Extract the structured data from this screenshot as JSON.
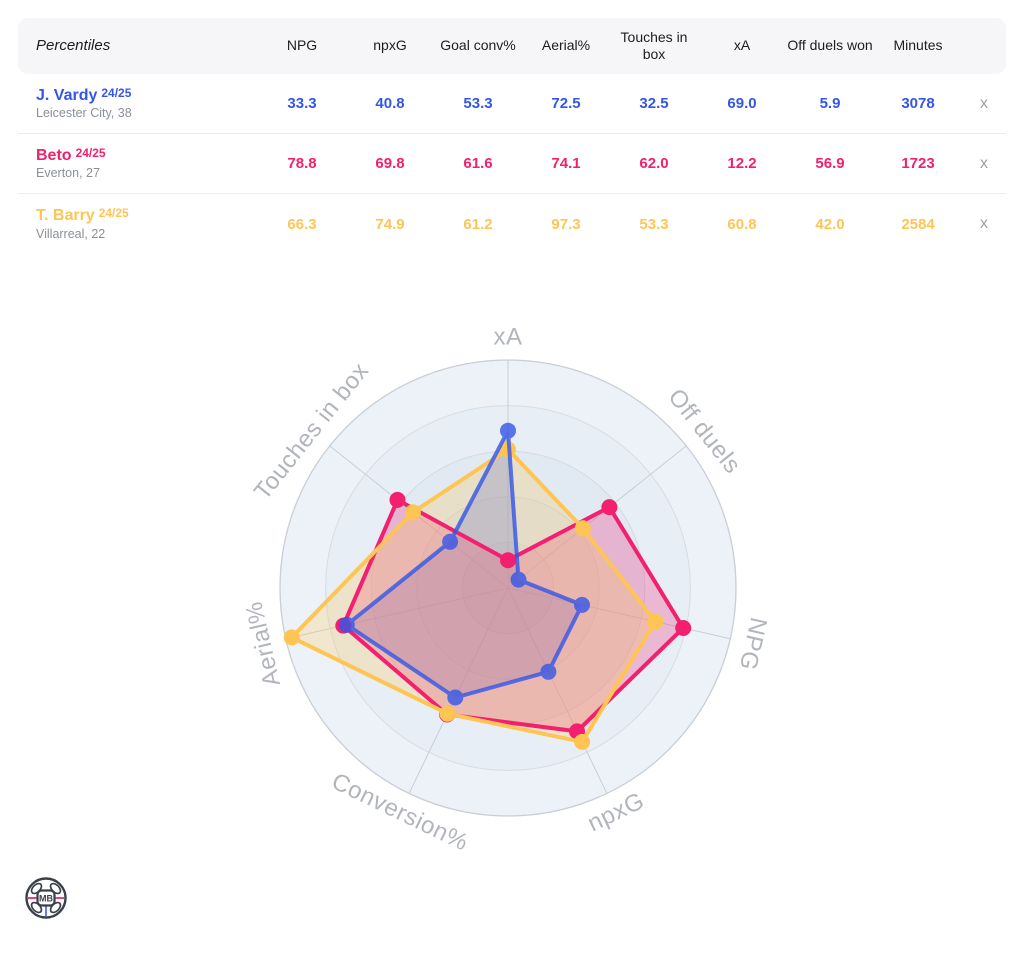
{
  "table": {
    "header": {
      "label": "Percentiles",
      "columns": [
        "NPG",
        "npxG",
        "Goal conv%",
        "Aerial%",
        "Touches in box",
        "xA",
        "Off duels won",
        "Minutes"
      ]
    },
    "remove_label": "x",
    "rows": [
      {
        "name": "J. Vardy",
        "season": "24/25",
        "subtitle": "Leicester City, 38",
        "color": "#3456E8",
        "values": [
          "33.3",
          "40.8",
          "53.3",
          "72.5",
          "32.5",
          "69.0",
          "5.9",
          "3078"
        ]
      },
      {
        "name": "Beto",
        "season": "24/25",
        "subtitle": "Everton, 27",
        "color": "#F2206F",
        "values": [
          "78.8",
          "69.8",
          "61.6",
          "74.1",
          "62.0",
          "12.2",
          "56.9",
          "1723"
        ]
      },
      {
        "name": "T. Barry",
        "season": "24/25",
        "subtitle": "Villarreal, 22",
        "color": "#FFC554",
        "values": [
          "66.3",
          "74.9",
          "61.2",
          "97.3",
          "53.3",
          "60.8",
          "42.0",
          "2584"
        ]
      }
    ]
  },
  "chart_data": {
    "type": "radar",
    "axes": [
      "xA",
      "Off duels",
      "NPG",
      "npxG",
      "Conversion%",
      "Aerial%",
      "Touches in box"
    ],
    "scale_min": 0,
    "scale_max": 100,
    "grid_rings": 5,
    "legend_position": "none",
    "series": [
      {
        "name": "J. Vardy 24/25",
        "color": "#3456E8",
        "values": [
          69.0,
          5.9,
          33.3,
          40.8,
          53.3,
          72.5,
          32.5
        ]
      },
      {
        "name": "Beto 24/25",
        "color": "#F2206F",
        "values": [
          12.2,
          56.9,
          78.8,
          69.8,
          61.6,
          74.1,
          62.0
        ]
      },
      {
        "name": "T. Barry 24/25",
        "color": "#FFC554",
        "values": [
          60.8,
          42.0,
          66.3,
          74.9,
          61.2,
          97.3,
          53.3
        ]
      }
    ],
    "style": {
      "ring_colors": [
        "#EDF2F8",
        "#E7EEF5",
        "#E1E9F2",
        "#DCE4EF",
        "#D8E0EC"
      ],
      "grid_color": "#C9CED5",
      "label_color": "#B2B6BC",
      "fill_opacity": 0.26
    }
  },
  "logo": {
    "text": "MB",
    "accent_pink": "#F2206F",
    "accent_blue": "#5B6BE8",
    "outline": "#3A4049"
  }
}
